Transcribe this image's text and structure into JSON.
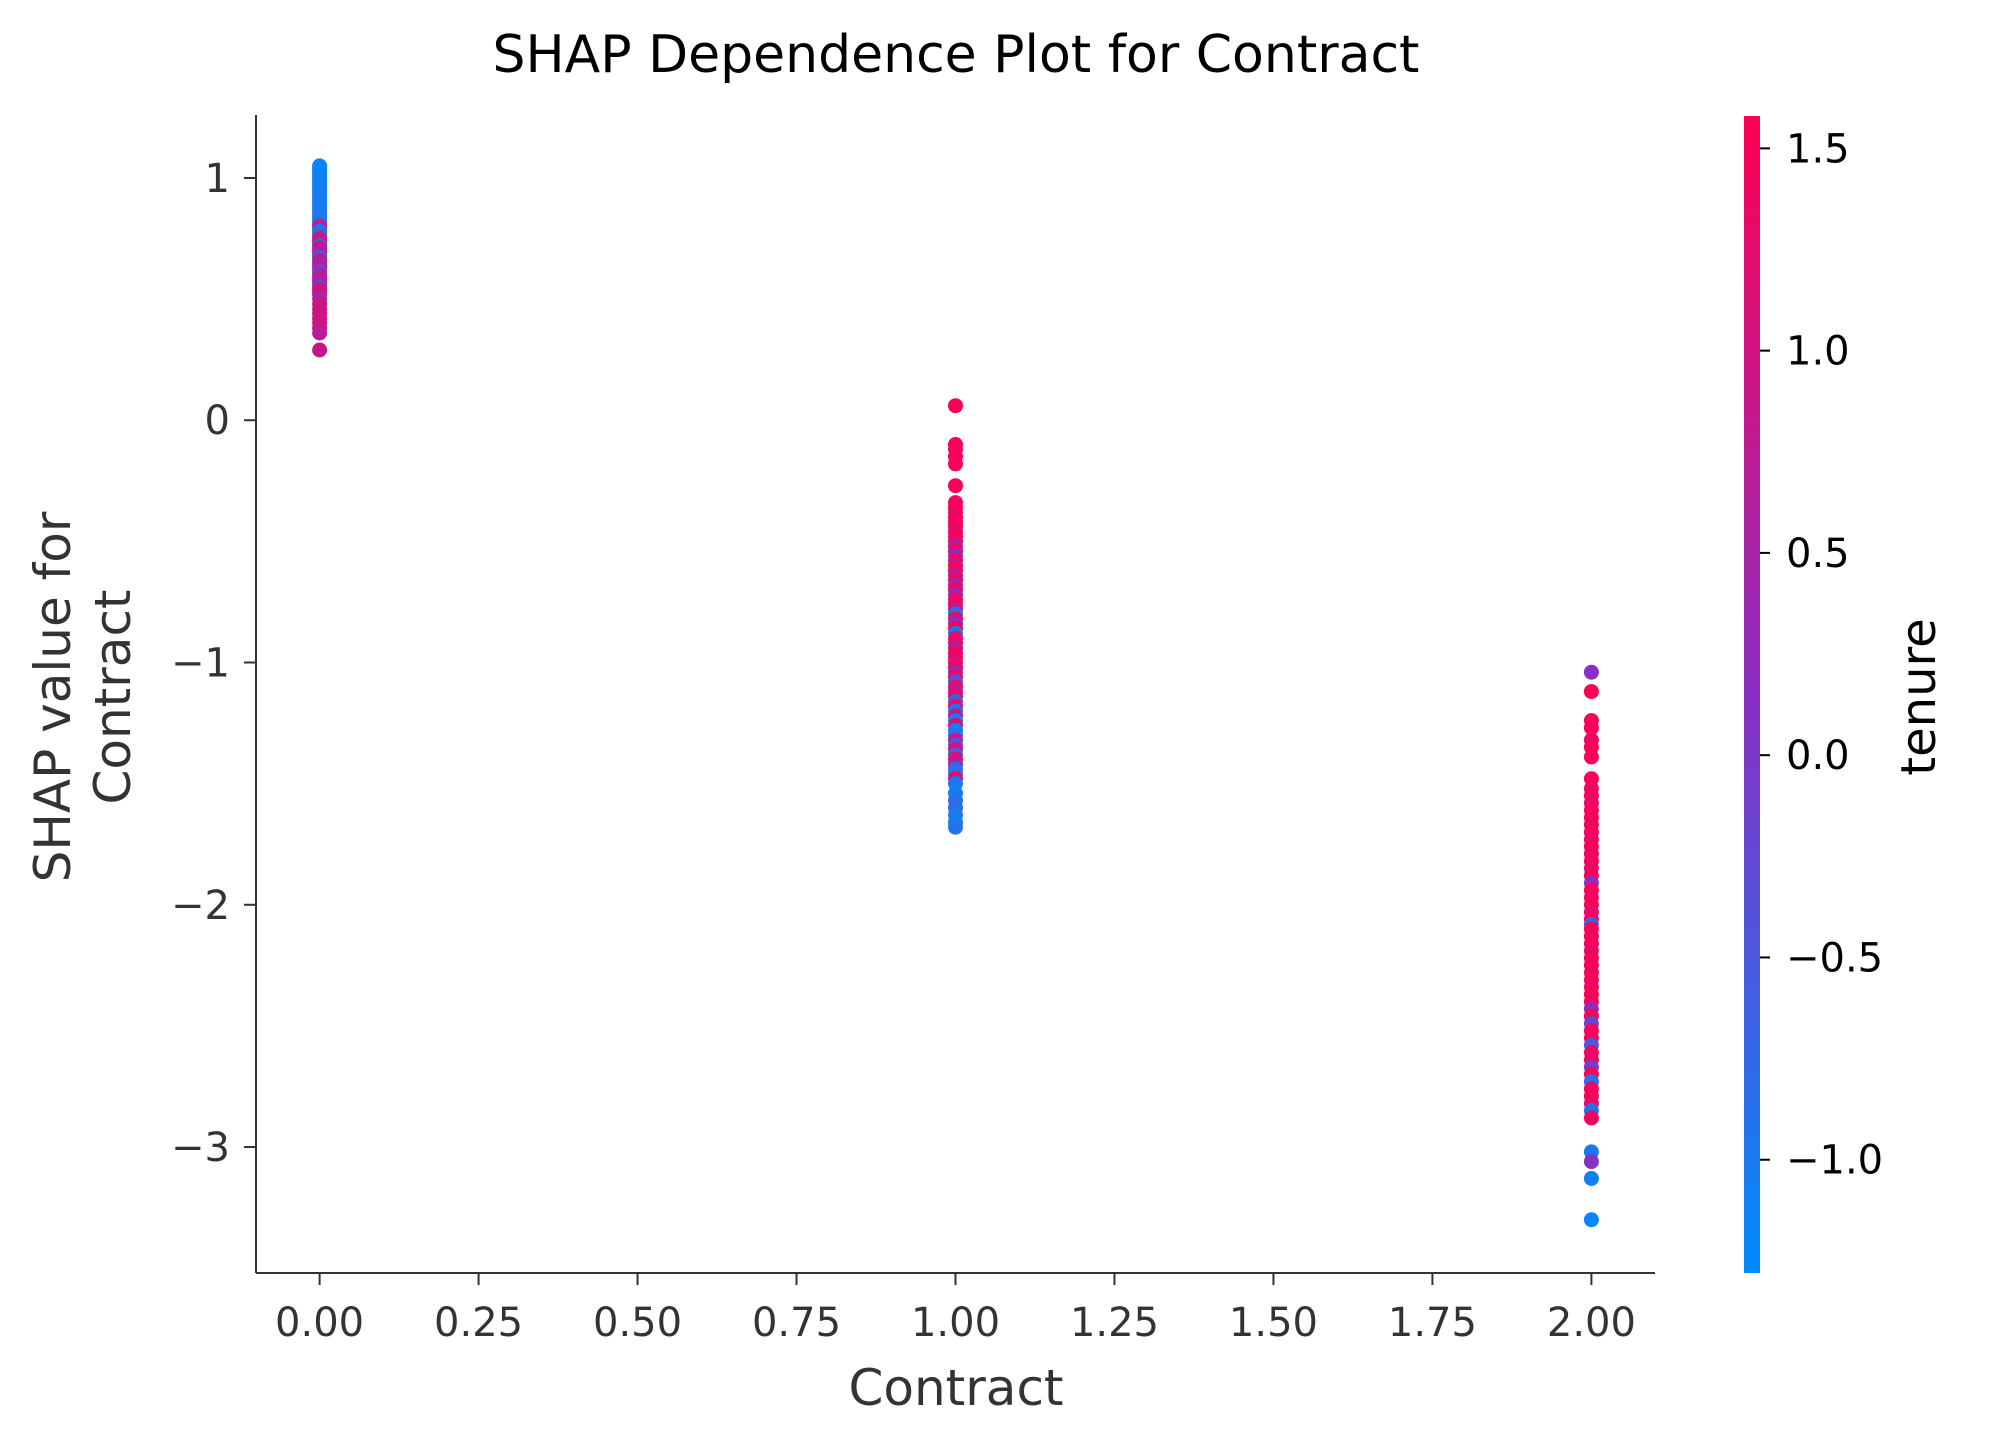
{
  "chart_data": {
    "type": "scatter",
    "title": "SHAP Dependence Plot for Contract",
    "xlabel": "Contract",
    "ylabel_lines": [
      "SHAP value for",
      "Contract"
    ],
    "x_ticks": [
      0.0,
      0.25,
      0.5,
      0.75,
      1.0,
      1.25,
      1.5,
      1.75,
      2.0
    ],
    "x_tick_labels": [
      "0.00",
      "0.25",
      "0.50",
      "0.75",
      "1.00",
      "1.25",
      "1.50",
      "1.75",
      "2.00"
    ],
    "y_ticks": [
      1,
      0,
      -1,
      -2,
      -3
    ],
    "y_tick_labels": [
      "1",
      "0",
      "−1",
      "−2",
      "−3"
    ],
    "xlim": [
      -0.1,
      2.1
    ],
    "ylim": [
      -3.52,
      1.26
    ],
    "grid": false,
    "colorbar": {
      "label": "tenure",
      "range": [
        -1.28,
        1.58
      ],
      "ticks": [
        1.5,
        1.0,
        0.5,
        0.0,
        -0.5,
        -1.0
      ],
      "tick_labels": [
        "1.5",
        "1.0",
        "0.5",
        "0.0",
        "−0.5",
        "−1.0"
      ],
      "color_low": "#008bfb",
      "color_mid": "#8a2fc2",
      "color_high": "#ff0052"
    },
    "series": [
      {
        "x": 0,
        "points": [
          [
            1.05,
            -1.2
          ],
          [
            1.04,
            -1.2
          ],
          [
            1.03,
            -1.15
          ],
          [
            1.02,
            -1.2
          ],
          [
            1.01,
            -1.1
          ],
          [
            1.0,
            -1.15
          ],
          [
            0.99,
            -1.1
          ],
          [
            0.98,
            -1.2
          ],
          [
            0.97,
            -1.05
          ],
          [
            0.96,
            -1.15
          ],
          [
            0.95,
            -1.1
          ],
          [
            0.94,
            -1.0
          ],
          [
            0.93,
            -1.1
          ],
          [
            0.92,
            -1.05
          ],
          [
            0.91,
            -1.0
          ],
          [
            0.9,
            -1.15
          ],
          [
            0.89,
            -1.05
          ],
          [
            0.88,
            -1.0
          ],
          [
            0.87,
            -1.1
          ],
          [
            0.86,
            -0.95
          ],
          [
            0.85,
            -1.05
          ],
          [
            0.84,
            -0.9
          ],
          [
            0.83,
            -1.0
          ],
          [
            0.82,
            -0.95
          ],
          [
            0.81,
            -0.9
          ],
          [
            0.8,
            0.9
          ],
          [
            0.79,
            0.8
          ],
          [
            0.78,
            -0.85
          ],
          [
            0.77,
            -0.9
          ],
          [
            0.76,
            -0.8
          ],
          [
            0.75,
            1.0
          ],
          [
            0.74,
            0.7
          ],
          [
            0.73,
            0.9
          ],
          [
            0.72,
            -0.7
          ],
          [
            0.71,
            1.2
          ],
          [
            0.7,
            0.5
          ],
          [
            0.69,
            0.8
          ],
          [
            0.68,
            0.3
          ],
          [
            0.67,
            -0.6
          ],
          [
            0.66,
            0.9
          ],
          [
            0.65,
            0.6
          ],
          [
            0.64,
            0.2
          ],
          [
            0.63,
            1.0
          ],
          [
            0.62,
            0.4
          ],
          [
            0.61,
            -0.4
          ],
          [
            0.6,
            0.7
          ],
          [
            0.59,
            0.1
          ],
          [
            0.58,
            1.1
          ],
          [
            0.57,
            0.3
          ],
          [
            0.56,
            0.8
          ],
          [
            0.55,
            -0.2
          ],
          [
            0.54,
            0.6
          ],
          [
            0.53,
            1.3
          ],
          [
            0.52,
            0.9
          ],
          [
            0.5,
            0.4
          ],
          [
            0.48,
            1.0
          ],
          [
            0.46,
            0.7
          ],
          [
            0.44,
            1.2
          ],
          [
            0.42,
            0.8
          ],
          [
            0.4,
            1.1
          ],
          [
            0.38,
            0.9
          ],
          [
            0.36,
            0.7
          ],
          [
            0.29,
            0.9
          ]
        ]
      },
      {
        "x": 1,
        "points": [
          [
            0.06,
            1.5
          ],
          [
            -0.1,
            1.5
          ],
          [
            -0.12,
            1.4
          ],
          [
            -0.15,
            1.5
          ],
          [
            -0.18,
            1.45
          ],
          [
            -0.27,
            1.5
          ],
          [
            -0.34,
            1.4
          ],
          [
            -0.36,
            1.5
          ],
          [
            -0.38,
            1.45
          ],
          [
            -0.4,
            1.3
          ],
          [
            -0.42,
            1.5
          ],
          [
            -0.44,
            1.4
          ],
          [
            -0.46,
            1.2
          ],
          [
            -0.48,
            1.5
          ],
          [
            -0.5,
            1.35
          ],
          [
            -0.52,
            0.6
          ],
          [
            -0.54,
            1.3
          ],
          [
            -0.56,
            0.2
          ],
          [
            -0.58,
            1.4
          ],
          [
            -0.6,
            1.0
          ],
          [
            -0.62,
            1.5
          ],
          [
            -0.64,
            0.8
          ],
          [
            -0.66,
            1.3
          ],
          [
            -0.68,
            0.4
          ],
          [
            -0.7,
            1.4
          ],
          [
            -0.72,
            0.3
          ],
          [
            -0.74,
            1.2
          ],
          [
            -0.76,
            1.4
          ],
          [
            -0.78,
            0.9
          ],
          [
            -0.8,
            -0.8
          ],
          [
            -0.82,
            1.3
          ],
          [
            -0.84,
            0.2
          ],
          [
            -0.86,
            1.5
          ],
          [
            -0.88,
            -0.9
          ],
          [
            -0.9,
            1.2
          ],
          [
            -0.92,
            1.4
          ],
          [
            -0.94,
            0.6
          ],
          [
            -0.96,
            1.3
          ],
          [
            -0.98,
            1.4
          ],
          [
            -1.0,
            1.1
          ],
          [
            -1.02,
            1.4
          ],
          [
            -1.04,
            0.5
          ],
          [
            -1.06,
            1.3
          ],
          [
            -1.08,
            -0.4
          ],
          [
            -1.1,
            1.2
          ],
          [
            -1.12,
            0.8
          ],
          [
            -1.14,
            1.4
          ],
          [
            -1.16,
            -0.6
          ],
          [
            -1.18,
            1.3
          ],
          [
            -1.2,
            -0.9
          ],
          [
            -1.22,
            0.9
          ],
          [
            -1.24,
            -1.0
          ],
          [
            -1.26,
            1.2
          ],
          [
            -1.28,
            -1.1
          ],
          [
            -1.3,
            -0.9
          ],
          [
            -1.32,
            0.7
          ],
          [
            -1.34,
            -0.3
          ],
          [
            -1.36,
            1.1
          ],
          [
            -1.38,
            -0.5
          ],
          [
            -1.4,
            1.3
          ],
          [
            -1.42,
            0.4
          ],
          [
            -1.44,
            -0.7
          ],
          [
            -1.46,
            -0.8
          ],
          [
            -1.48,
            1.3
          ],
          [
            -1.5,
            -1.0
          ],
          [
            -1.54,
            -1.1
          ],
          [
            -1.57,
            -0.9
          ],
          [
            -1.6,
            -0.8
          ],
          [
            -1.63,
            -1.0
          ],
          [
            -1.66,
            -1.1
          ],
          [
            -1.68,
            -0.9
          ]
        ]
      },
      {
        "x": 2,
        "points": [
          [
            -1.04,
            0.1
          ],
          [
            -1.12,
            1.5
          ],
          [
            -1.24,
            1.45
          ],
          [
            -1.27,
            1.5
          ],
          [
            -1.32,
            1.4
          ],
          [
            -1.35,
            1.5
          ],
          [
            -1.39,
            1.45
          ],
          [
            -1.48,
            1.5
          ],
          [
            -1.52,
            1.4
          ],
          [
            -1.55,
            1.5
          ],
          [
            -1.58,
            1.3
          ],
          [
            -1.61,
            1.45
          ],
          [
            -1.64,
            1.5
          ],
          [
            -1.67,
            1.4
          ],
          [
            -1.7,
            1.5
          ],
          [
            -1.73,
            1.35
          ],
          [
            -1.76,
            1.5
          ],
          [
            -1.79,
            1.4
          ],
          [
            -1.82,
            1.5
          ],
          [
            -1.85,
            1.3
          ],
          [
            -1.88,
            1.45
          ],
          [
            -1.91,
            0.2
          ],
          [
            -1.94,
            1.5
          ],
          [
            -1.97,
            1.4
          ],
          [
            -2.0,
            1.5
          ],
          [
            -2.03,
            1.3
          ],
          [
            -2.06,
            1.45
          ],
          [
            -2.08,
            -0.6
          ],
          [
            -2.1,
            1.5
          ],
          [
            -2.13,
            1.4
          ],
          [
            -2.16,
            1.5
          ],
          [
            -2.19,
            1.3
          ],
          [
            -2.22,
            1.45
          ],
          [
            -2.25,
            1.5
          ],
          [
            -2.28,
            1.4
          ],
          [
            -2.31,
            1.5
          ],
          [
            -2.34,
            1.35
          ],
          [
            -2.37,
            1.5
          ],
          [
            -2.4,
            1.4
          ],
          [
            -2.43,
            0.3
          ],
          [
            -2.46,
            1.5
          ],
          [
            -2.49,
            -0.2
          ],
          [
            -2.52,
            1.4
          ],
          [
            -2.55,
            1.5
          ],
          [
            -2.58,
            -0.5
          ],
          [
            -2.61,
            1.3
          ],
          [
            -2.64,
            1.4
          ],
          [
            -2.67,
            0.0
          ],
          [
            -2.7,
            1.5
          ],
          [
            -2.73,
            -0.8
          ],
          [
            -2.76,
            1.4
          ],
          [
            -2.79,
            1.5
          ],
          [
            -2.82,
            1.3
          ],
          [
            -2.85,
            -0.9
          ],
          [
            -2.88,
            1.4
          ],
          [
            -3.02,
            -1.0
          ],
          [
            -3.06,
            0.1
          ],
          [
            -3.13,
            -1.1
          ],
          [
            -3.3,
            -1.2
          ]
        ]
      }
    ]
  }
}
